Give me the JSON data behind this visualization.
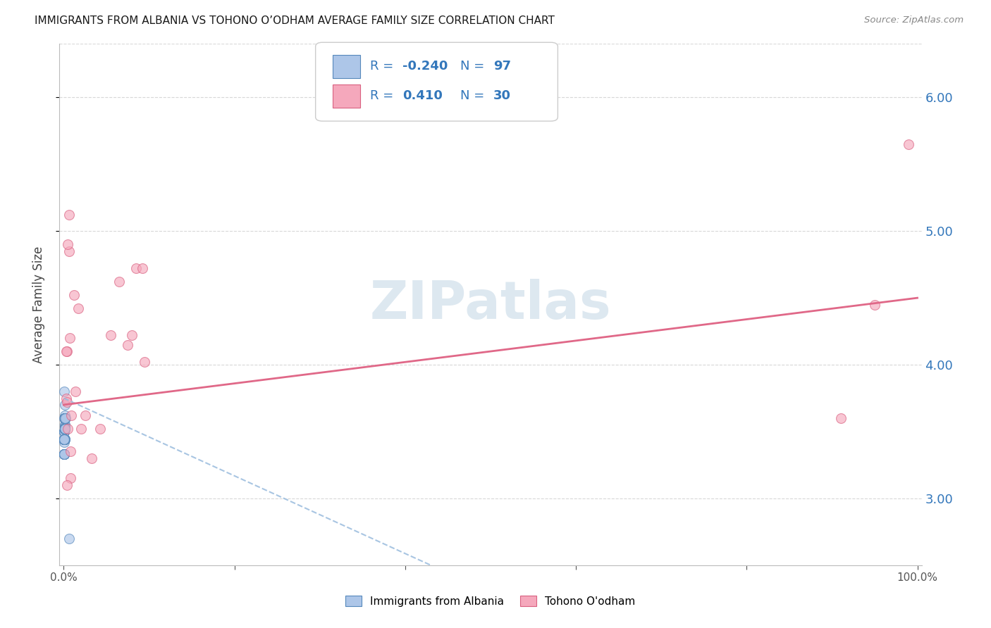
{
  "title": "IMMIGRANTS FROM ALBANIA VS TOHONO O’ODHAM AVERAGE FAMILY SIZE CORRELATION CHART",
  "source": "Source: ZipAtlas.com",
  "ylabel": "Average Family Size",
  "ylim": [
    2.5,
    6.4
  ],
  "xlim": [
    -0.005,
    1.005
  ],
  "yticks": [
    3.0,
    4.0,
    5.0,
    6.0
  ],
  "xticks": [
    0.0,
    0.2,
    0.4,
    0.6,
    0.8,
    1.0
  ],
  "xtick_labels": [
    "0.0%",
    "",
    "",
    "",
    "",
    "100.0%"
  ],
  "albania_R": -0.24,
  "albania_N": 97,
  "tohono_R": 0.41,
  "tohono_N": 30,
  "albania_color": "#adc6e8",
  "tohono_color": "#f5a8bc",
  "albania_edge": "#5588bb",
  "tohono_edge": "#d96080",
  "trend_albania_color": "#99bbdd",
  "trend_tohono_color": "#e06888",
  "background_color": "#ffffff",
  "grid_color": "#d8d8d8",
  "title_color": "#1a1a1a",
  "axis_label_color": "#444444",
  "right_tick_color": "#3377bb",
  "watermark_color": "#dde8f0",
  "albania_x": [
    0.0008,
    0.001,
    0.0008,
    0.0012,
    0.0009,
    0.0007,
    0.0014,
    0.001,
    0.0008,
    0.0011,
    0.0007,
    0.0009,
    0.0008,
    0.001,
    0.0012,
    0.0007,
    0.0009,
    0.0008,
    0.0011,
    0.0009,
    0.0007,
    0.0009,
    0.0013,
    0.001,
    0.0008,
    0.0011,
    0.0009,
    0.0007,
    0.001,
    0.0008,
    0.0011,
    0.0009,
    0.0008,
    0.001,
    0.0007,
    0.0009,
    0.0011,
    0.0008,
    0.0009,
    0.0007,
    0.0013,
    0.0009,
    0.0008,
    0.0012,
    0.0009,
    0.0007,
    0.0009,
    0.0007,
    0.0009,
    0.0011,
    0.0008,
    0.0009,
    0.0007,
    0.0009,
    0.0008,
    0.0011,
    0.0009,
    0.0008,
    0.0009,
    0.0011,
    0.0008,
    0.0009,
    0.0013,
    0.0008,
    0.0009,
    0.0011,
    0.0007,
    0.0009,
    0.0008,
    0.0009,
    0.0015,
    0.0009,
    0.0008,
    0.0011,
    0.0009,
    0.0017,
    0.0008,
    0.0009,
    0.0007,
    0.0011,
    0.0009,
    0.0007,
    0.0013,
    0.0009,
    0.0008,
    0.0011,
    0.0007,
    0.0009,
    0.0008,
    0.002,
    0.0009,
    0.0007,
    0.0012,
    0.0009,
    0.0008,
    0.0009,
    0.006
  ],
  "albania_y": [
    3.8,
    3.55,
    3.6,
    3.7,
    3.52,
    3.42,
    3.62,
    3.52,
    3.44,
    3.54,
    3.5,
    3.44,
    3.5,
    3.6,
    3.53,
    3.33,
    3.44,
    3.5,
    3.6,
    3.52,
    3.44,
    3.52,
    3.6,
    3.52,
    3.44,
    3.52,
    3.52,
    3.33,
    3.6,
    3.5,
    3.44,
    3.52,
    3.5,
    3.6,
    3.44,
    3.52,
    3.52,
    3.44,
    3.52,
    3.33,
    3.6,
    3.52,
    3.44,
    3.6,
    3.52,
    3.44,
    3.52,
    3.33,
    3.52,
    3.6,
    3.44,
    3.52,
    3.33,
    3.52,
    3.44,
    3.6,
    3.52,
    3.44,
    3.52,
    3.6,
    3.44,
    3.52,
    3.6,
    3.44,
    3.52,
    3.6,
    3.33,
    3.52,
    3.44,
    3.52,
    3.6,
    3.52,
    3.44,
    3.52,
    3.6,
    3.52,
    3.44,
    3.52,
    3.33,
    3.6,
    3.52,
    3.33,
    3.6,
    3.52,
    3.44,
    3.52,
    3.33,
    3.52,
    3.44,
    3.6,
    3.52,
    3.33,
    3.52,
    3.6,
    3.44,
    3.52,
    2.7
  ],
  "tohono_x": [
    0.003,
    0.004,
    0.006,
    0.005,
    0.003,
    0.007,
    0.008,
    0.004,
    0.005,
    0.009,
    0.014,
    0.02,
    0.004,
    0.006,
    0.008,
    0.012,
    0.017,
    0.025,
    0.033,
    0.043,
    0.055,
    0.065,
    0.075,
    0.08,
    0.085,
    0.092,
    0.095,
    0.91,
    0.95,
    0.99
  ],
  "tohono_y": [
    3.75,
    4.1,
    4.85,
    4.9,
    4.1,
    4.2,
    3.15,
    3.1,
    3.52,
    3.62,
    3.8,
    3.52,
    3.72,
    5.12,
    3.35,
    4.52,
    4.42,
    3.62,
    3.3,
    3.52,
    4.22,
    4.62,
    4.15,
    4.22,
    4.72,
    4.72,
    4.02,
    3.6,
    4.45,
    5.65
  ],
  "trend_albania_x0": 0.0,
  "trend_albania_x1": 0.43,
  "trend_albania_y0": 3.75,
  "trend_albania_y1": 2.5,
  "trend_tohono_x0": 0.0,
  "trend_tohono_x1": 1.0,
  "trend_tohono_y0": 3.7,
  "trend_tohono_y1": 4.5,
  "marker_size": 100,
  "marker_alpha": 0.65,
  "trend_lw": 2.0,
  "dashed_lw": 1.5
}
